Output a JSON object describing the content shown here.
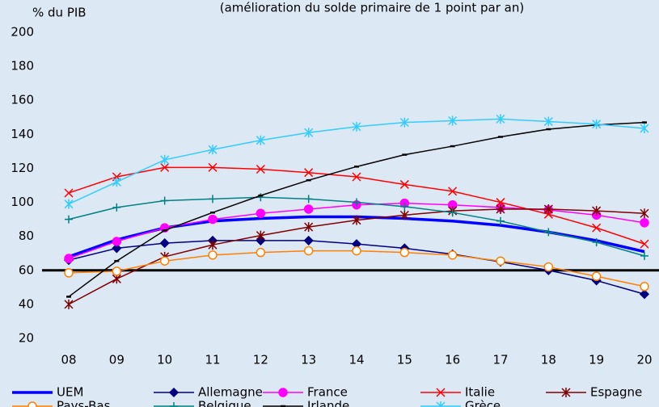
{
  "chart_data": {
    "type": "line",
    "title": "(amélioration du solde primaire de 1 point par an)",
    "y_label": "% du PIB",
    "categories": [
      "08",
      "09",
      "10",
      "11",
      "12",
      "13",
      "14",
      "15",
      "16",
      "17",
      "18",
      "19",
      "20"
    ],
    "ylim": [
      20,
      200
    ],
    "yticks": [
      20,
      40,
      60,
      80,
      100,
      120,
      140,
      160,
      180,
      200
    ],
    "grid": false,
    "reference_line": 60,
    "legend": "bottom",
    "series": [
      {
        "name": "UEM",
        "color": "#0000ff",
        "marker": "none",
        "width": 3.5,
        "values": [
          68,
          78,
          85,
          89,
          90.5,
          91.5,
          91.5,
          90.5,
          89,
          86.5,
          82.5,
          77.5,
          71
        ]
      },
      {
        "name": "Allemagne",
        "color": "#000080",
        "marker": "diamond",
        "width": 1.5,
        "values": [
          66,
          73,
          76,
          77.5,
          77.5,
          77.5,
          75.5,
          73,
          69.5,
          65,
          60,
          54,
          46
        ]
      },
      {
        "name": "France",
        "color": "#ff00ff",
        "marker": "circle",
        "width": 1.5,
        "values": [
          67,
          77,
          85,
          90,
          93.5,
          96,
          98.5,
          99.5,
          98.5,
          97,
          95.5,
          92.5,
          88
        ]
      },
      {
        "name": "Italie",
        "color": "#ff0000",
        "marker": "x",
        "width": 1.5,
        "values": [
          105.5,
          115,
          120.5,
          120.5,
          119.5,
          117.5,
          115,
          110.5,
          106.5,
          100,
          93,
          85,
          75.5
        ]
      },
      {
        "name": "Espagne",
        "color": "#800000",
        "marker": "star",
        "width": 1.5,
        "values": [
          40,
          55,
          68,
          75,
          80.5,
          85.5,
          89.5,
          92.5,
          95,
          96,
          96,
          95,
          93.5
        ]
      },
      {
        "name": "Pays-Bas",
        "color": "#ff8000",
        "marker": "open-circle",
        "width": 1.5,
        "values": [
          58.5,
          59.5,
          65.5,
          69,
          70.5,
          71.5,
          71.5,
          70.5,
          69,
          65.5,
          62,
          56.5,
          50.5
        ]
      },
      {
        "name": "Belgique",
        "color": "#008080",
        "marker": "plus",
        "width": 1.5,
        "values": [
          90,
          97,
          101,
          102,
          103,
          102,
          100,
          97.5,
          94,
          89,
          82.5,
          76.5,
          68.5
        ]
      },
      {
        "name": "Irlande",
        "color": "#000000",
        "marker": "dash",
        "width": 1.5,
        "values": [
          44.5,
          65.5,
          83.5,
          94,
          104,
          113,
          121,
          128,
          133,
          138.5,
          143,
          145.5,
          147
        ]
      },
      {
        "name": "Grèce",
        "color": "#33ccff",
        "marker": "star",
        "width": 1.5,
        "values": [
          99,
          112,
          125,
          131,
          136.5,
          141,
          144.5,
          147,
          148,
          149,
          147.5,
          146,
          143.5
        ]
      }
    ]
  }
}
